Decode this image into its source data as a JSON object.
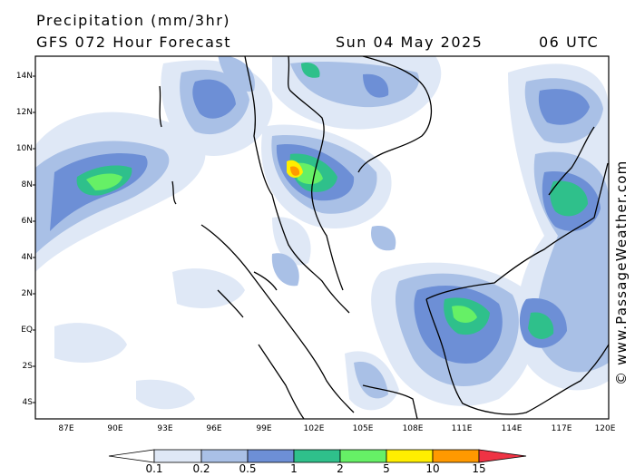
{
  "header": {
    "title": "Precipitation (mm/3hr)",
    "model": "GFS 072 Hour Forecast",
    "date": "Sun 04 May 2025",
    "time": "06 UTC"
  },
  "credit": "© www.PassageWeather.com",
  "axes": {
    "lat_labels": [
      "14N",
      "12N",
      "10N",
      "8N",
      "6N",
      "4N",
      "2N",
      "EQ",
      "2S",
      "4S"
    ],
    "lon_labels": [
      "87E",
      "90E",
      "93E",
      "96E",
      "99E",
      "102E",
      "105E",
      "108E",
      "111E",
      "114E",
      "117E",
      "120E"
    ]
  },
  "legend": {
    "labels": [
      "0.1",
      "0.2",
      "0.5",
      "1",
      "2",
      "5",
      "10",
      "15"
    ],
    "colors": [
      "#ffffff",
      "#dfe8f6",
      "#a9c0e6",
      "#6d8fd6",
      "#2fc08b",
      "#66f066",
      "#ffee00",
      "#ff9900",
      "#ee3344"
    ]
  }
}
